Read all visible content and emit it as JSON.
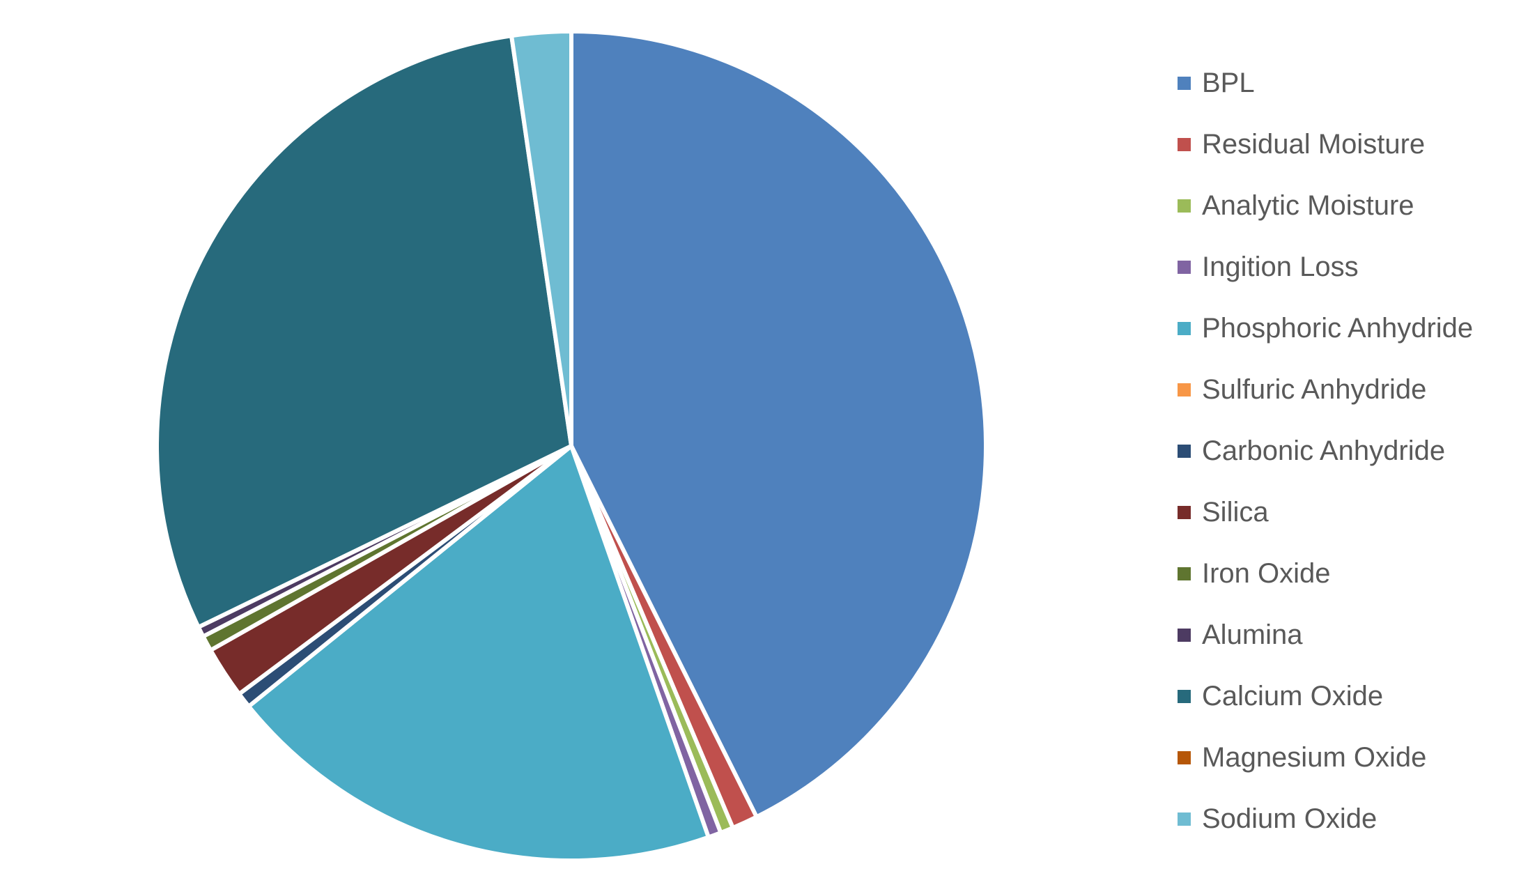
{
  "chart_data": {
    "type": "pie",
    "title": "",
    "legend_position": "right",
    "start_angle_deg": 0,
    "direction": "clockwise",
    "slices": [
      {
        "label": "BPL",
        "value": 42.5,
        "color": "#4F81BD"
      },
      {
        "label": "Residual Moisture",
        "value": 1.0,
        "color": "#C0504D"
      },
      {
        "label": "Analytic Moisture",
        "value": 0.5,
        "color": "#9BBB59"
      },
      {
        "label": "Ingition Loss",
        "value": 0.5,
        "color": "#8064A2"
      },
      {
        "label": "Phosphoric Anhydride",
        "value": 19.5,
        "color": "#4BACC6"
      },
      {
        "label": "Sulfuric Anhydride",
        "value": 0.0,
        "color": "#F79646"
      },
      {
        "label": "Carbonic Anhydride",
        "value": 0.6,
        "color": "#2C4D75"
      },
      {
        "label": "Silica",
        "value": 2.0,
        "color": "#772C2A"
      },
      {
        "label": "Iron Oxide",
        "value": 0.6,
        "color": "#5F7530"
      },
      {
        "label": "Alumina",
        "value": 0.4,
        "color": "#4D3B62"
      },
      {
        "label": "Calcium Oxide",
        "value": 29.8,
        "color": "#276A7C"
      },
      {
        "label": "Magnesium Oxide",
        "value": 0.0,
        "color": "#B65708"
      },
      {
        "label": "Sodium Oxide",
        "value": 2.3,
        "color": "#6FBCD2"
      }
    ]
  }
}
